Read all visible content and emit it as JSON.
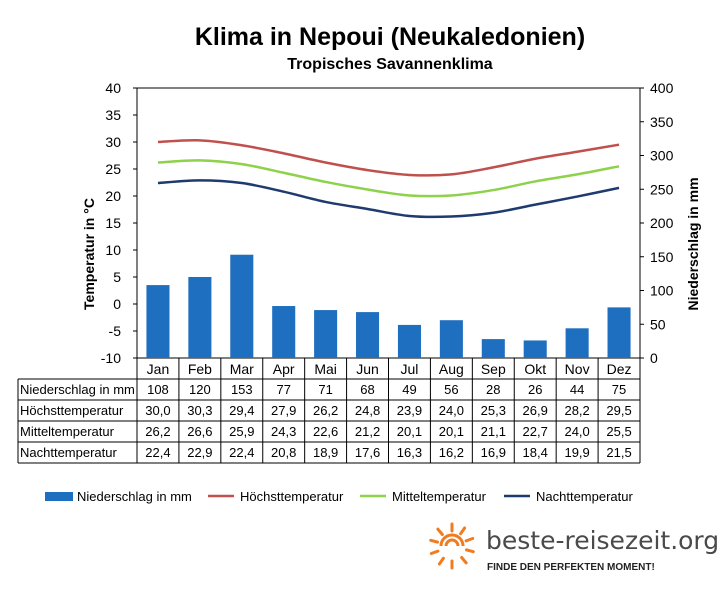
{
  "chart_data": {
    "type": "bar",
    "title": "Klima in Nepoui (Neukaledonien)",
    "subtitle": "Tropisches Savannenklima",
    "ylabel_left": "Temperatur in °C",
    "ylabel_right": "Niederschlag in mm",
    "ylim_left": [
      -10,
      40
    ],
    "ylim_right": [
      0,
      400
    ],
    "yticks_left": [
      -10,
      -5,
      0,
      5,
      10,
      15,
      20,
      25,
      30,
      35,
      40
    ],
    "yticks_right": [
      0,
      50,
      100,
      150,
      200,
      250,
      300,
      350,
      400
    ],
    "grid": false,
    "legend_position": "bottom",
    "categories": [
      "Jan",
      "Feb",
      "Mar",
      "Apr",
      "Mai",
      "Jun",
      "Jul",
      "Aug",
      "Sep",
      "Okt",
      "Nov",
      "Dez"
    ],
    "series": [
      {
        "name": "Niederschlag in mm",
        "kind": "bar",
        "axis": "right",
        "color": "#1f6fc0",
        "values": [
          108,
          120,
          153,
          77,
          71,
          68,
          49,
          56,
          28,
          26,
          44,
          75
        ],
        "labels": [
          "108",
          "120",
          "153",
          "77",
          "71",
          "68",
          "49",
          "56",
          "28",
          "26",
          "44",
          "75"
        ]
      },
      {
        "name": "Höchsttemperatur",
        "kind": "line",
        "axis": "left",
        "color": "#c0504d",
        "values": [
          30.0,
          30.3,
          29.4,
          27.9,
          26.2,
          24.8,
          23.9,
          24.0,
          25.3,
          26.9,
          28.2,
          29.5
        ],
        "labels": [
          "30,0",
          "30,3",
          "29,4",
          "27,9",
          "26,2",
          "24,8",
          "23,9",
          "24,0",
          "25,3",
          "26,9",
          "28,2",
          "29,5"
        ]
      },
      {
        "name": "Mitteltemperatur",
        "kind": "line",
        "axis": "left",
        "color": "#8ed14b",
        "values": [
          26.2,
          26.6,
          25.9,
          24.3,
          22.6,
          21.2,
          20.1,
          20.1,
          21.1,
          22.7,
          24.0,
          25.5
        ],
        "labels": [
          "26,2",
          "26,6",
          "25,9",
          "24,3",
          "22,6",
          "21,2",
          "20,1",
          "20,1",
          "21,1",
          "22,7",
          "24,0",
          "25,5"
        ]
      },
      {
        "name": "Nachttemperatur",
        "kind": "line",
        "axis": "left",
        "color": "#1f3a6e",
        "values": [
          22.4,
          22.9,
          22.4,
          20.8,
          18.9,
          17.6,
          16.3,
          16.2,
          16.9,
          18.4,
          19.9,
          21.5
        ],
        "labels": [
          "22,4",
          "22,9",
          "22,4",
          "20,8",
          "18,9",
          "17,6",
          "16,3",
          "16,2",
          "16,9",
          "18,4",
          "19,9",
          "21,5"
        ]
      }
    ]
  },
  "branding": {
    "url": "beste-reisezeit.org",
    "slogan": "FINDE DEN PERFEKTEN MOMENT!",
    "sun_color": "#f07c22"
  }
}
